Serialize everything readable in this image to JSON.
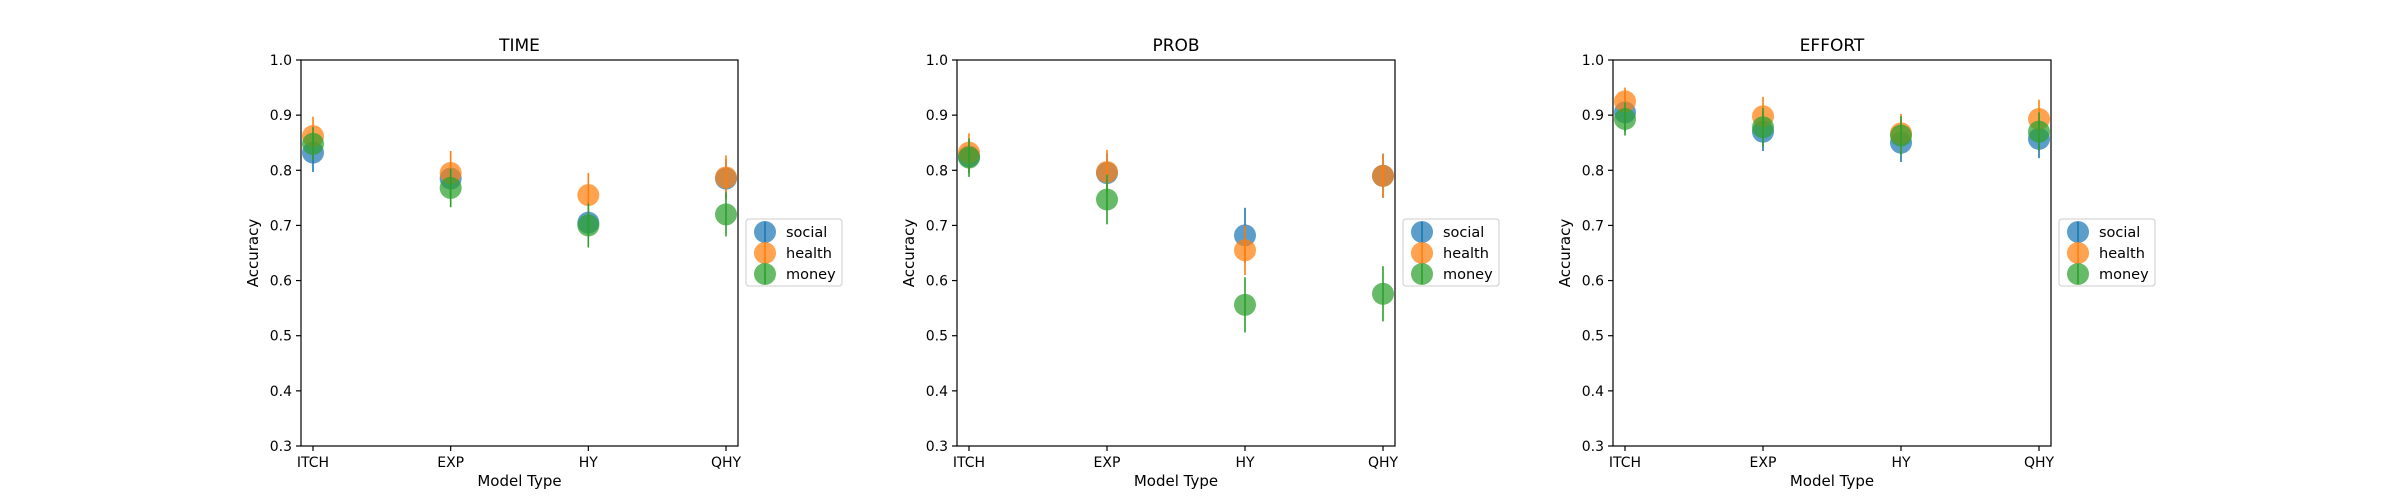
{
  "colors": {
    "social": "#1f77b4",
    "health": "#ff7f0e",
    "money": "#2ca02c"
  },
  "chart_data": [
    {
      "type": "scatter",
      "title": "TIME",
      "xlabel": "Model Type",
      "ylabel": "Accuracy",
      "categories": [
        "ITCH",
        "EXP",
        "HY",
        "QHY"
      ],
      "ylim": [
        0.3,
        1.0
      ],
      "yticks": [
        "0.3",
        "0.4",
        "0.5",
        "0.6",
        "0.7",
        "0.8",
        "0.9",
        "1.0"
      ],
      "grid": false,
      "legend_position": "right",
      "series": [
        {
          "name": "social",
          "values": [
            0.832,
            0.785,
            0.705,
            0.785
          ],
          "errors": [
            0.035,
            0.03,
            0.025,
            0.035
          ]
        },
        {
          "name": "health",
          "values": [
            0.862,
            0.795,
            0.755,
            0.787
          ],
          "errors": [
            0.035,
            0.04,
            0.04,
            0.04
          ]
        },
        {
          "name": "money",
          "values": [
            0.848,
            0.768,
            0.7,
            0.72
          ],
          "errors": [
            0.03,
            0.035,
            0.04,
            0.04
          ]
        }
      ]
    },
    {
      "type": "scatter",
      "title": "PROB",
      "xlabel": "Model Type",
      "ylabel": "Accuracy",
      "categories": [
        "ITCH",
        "EXP",
        "HY",
        "QHY"
      ],
      "ylim": [
        0.3,
        1.0
      ],
      "yticks": [
        "0.3",
        "0.4",
        "0.5",
        "0.6",
        "0.7",
        "0.8",
        "0.9",
        "1.0"
      ],
      "grid": false,
      "legend_position": "right",
      "series": [
        {
          "name": "social",
          "values": [
            0.825,
            0.795,
            0.682,
            0.79
          ],
          "errors": [
            0.03,
            0.035,
            0.05,
            0.04
          ]
        },
        {
          "name": "health",
          "values": [
            0.832,
            0.797,
            0.655,
            0.79
          ],
          "errors": [
            0.035,
            0.04,
            0.045,
            0.04
          ]
        },
        {
          "name": "money",
          "values": [
            0.823,
            0.747,
            0.556,
            0.576
          ],
          "errors": [
            0.035,
            0.045,
            0.05,
            0.05
          ]
        }
      ]
    },
    {
      "type": "scatter",
      "title": "EFFORT",
      "xlabel": "Model Type",
      "ylabel": "Accuracy",
      "categories": [
        "ITCH",
        "EXP",
        "HY",
        "QHY"
      ],
      "ylim": [
        0.3,
        1.0
      ],
      "yticks": [
        "0.3",
        "0.4",
        "0.5",
        "0.6",
        "0.7",
        "0.8",
        "0.9",
        "1.0"
      ],
      "grid": false,
      "legend_position": "right",
      "series": [
        {
          "name": "social",
          "values": [
            0.905,
            0.87,
            0.85,
            0.857
          ],
          "errors": [
            0.035,
            0.035,
            0.035,
            0.035
          ]
        },
        {
          "name": "health",
          "values": [
            0.925,
            0.898,
            0.867,
            0.893
          ],
          "errors": [
            0.025,
            0.035,
            0.035,
            0.035
          ]
        },
        {
          "name": "money",
          "values": [
            0.893,
            0.878,
            0.863,
            0.87
          ],
          "errors": [
            0.03,
            0.035,
            0.035,
            0.035
          ]
        }
      ]
    }
  ]
}
